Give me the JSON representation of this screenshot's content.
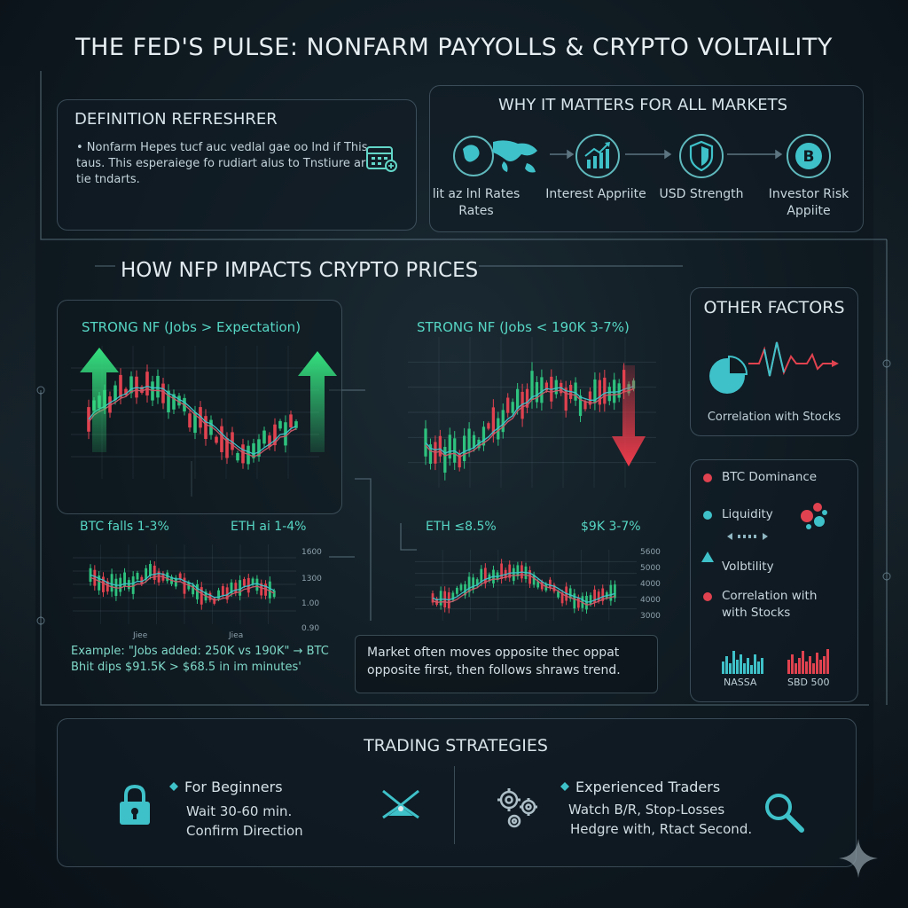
{
  "title": "THE FED'S PULSE: NONFARM PAYYOLLS & CRYPTO VOLTAILITY",
  "definition": {
    "title": "DEFINITION REFRESHRER",
    "text": "• Nonfarm Hepes tucf auc vedlal gae oo lnd if This taus. This esperaiege fo rudiart alus to Tnstiure ar tie tndarts.",
    "icon": "calendar-icon"
  },
  "why": {
    "title": "WHY IT MATTERS FOR ALL MARKETS",
    "items": [
      {
        "label": "lit az lnl Rates Rates",
        "icon": "globe-icon"
      },
      {
        "label": "Interest Appriite",
        "icon": "growth-chart-icon"
      },
      {
        "label": "USD Strength",
        "icon": "shield-icon"
      },
      {
        "label": "Investor Risk Appiite",
        "icon": "bitcoin-icon"
      }
    ]
  },
  "nfp": {
    "title": "HOW NFP IMPACTS CRYPTO PRICES",
    "left_chart_title": "STRONG NF (Jobs > Expectation)",
    "right_chart_title": "STRONG NF (Jobs < 190K 3-7%)",
    "btc_label": "BTC falls 1-3%",
    "eth_label_left": "ETH ai 1-4%",
    "eth_label_right": "ETH ≤8.5%",
    "right_range_label": "$9K 3-7%",
    "left_x_ticks": [
      "Jiee",
      "Jiea"
    ],
    "left_y_ticks": [
      "1600",
      "1300",
      "1.00",
      "0.90"
    ],
    "right_y_ticks": [
      "5600",
      "5000",
      "4000",
      "4000",
      "3000"
    ],
    "example": "Example: \"Jobs added: 250K vs 190K\" → BTC Bhit dips $91.5K > $68.5 in im minutes'",
    "market_note": "Market often moves opposite thec oppat opposite first, then follows shraws trend."
  },
  "other_factors": {
    "title": "OTHER FACTORS",
    "correlation_label": "Correlation with Stocks",
    "items": [
      {
        "label": "BTC Dominance",
        "color": "#e0424f",
        "shape": "dot"
      },
      {
        "label": "Liquidity",
        "color": "#3fc1c9",
        "shape": "dot"
      },
      {
        "label": "Volbtility",
        "color": "#3fc1c9",
        "shape": "triangle"
      },
      {
        "label": "Correlation with with Stocks",
        "color": "#e0424f",
        "shape": "dot"
      }
    ],
    "indices": [
      "NASSA",
      "SBD 500"
    ]
  },
  "strategies": {
    "title": "TRADING STRATEGIES",
    "beginners": {
      "head": "For Beginners",
      "line1": "Wait 30-60 min.",
      "line2": "Confirm Direction"
    },
    "experienced": {
      "head": "Experienced Traders",
      "line1": "Watch B/R, Stop-Losses",
      "line2": "Hedgre with, Rtact Second."
    }
  },
  "colors": {
    "accent": "#3fc1c9",
    "up": "#2ec27e",
    "down": "#e0424f"
  }
}
